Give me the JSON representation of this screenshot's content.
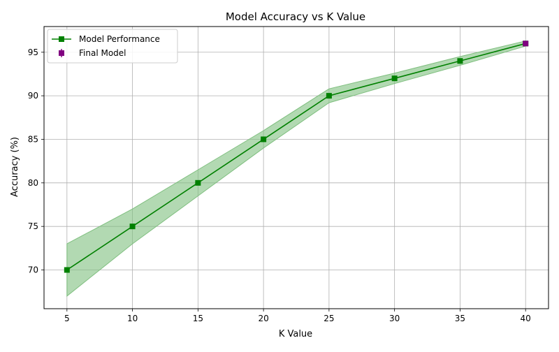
{
  "chart_data": {
    "type": "line",
    "title": "Model Accuracy vs K Value",
    "xlabel": "K Value",
    "ylabel": "Accuracy (%)",
    "xlim": [
      3.25,
      41.75
    ],
    "ylim": [
      65.55,
      97.95
    ],
    "x_ticks": [
      5,
      10,
      15,
      20,
      25,
      30,
      35,
      40
    ],
    "y_ticks": [
      70,
      75,
      80,
      85,
      90,
      95
    ],
    "grid": true,
    "legend_position": "top-left",
    "series": [
      {
        "name": "Model Performance",
        "x": [
          5,
          10,
          15,
          20,
          25,
          30,
          35,
          40
        ],
        "y": [
          70,
          75,
          80,
          85,
          90,
          92,
          94,
          96
        ],
        "lower": [
          67.0,
          73.0,
          78.5,
          84.0,
          89.2,
          91.4,
          93.5,
          95.7
        ],
        "upper": [
          73.0,
          77.0,
          81.5,
          86.0,
          90.8,
          92.6,
          94.5,
          96.3
        ],
        "color": "#008000",
        "marker": "square",
        "band_color": "#7fbf7f"
      },
      {
        "name": "Final Model",
        "x": [
          40
        ],
        "y": [
          96
        ],
        "color": "#800080",
        "marker": "square"
      }
    ]
  }
}
